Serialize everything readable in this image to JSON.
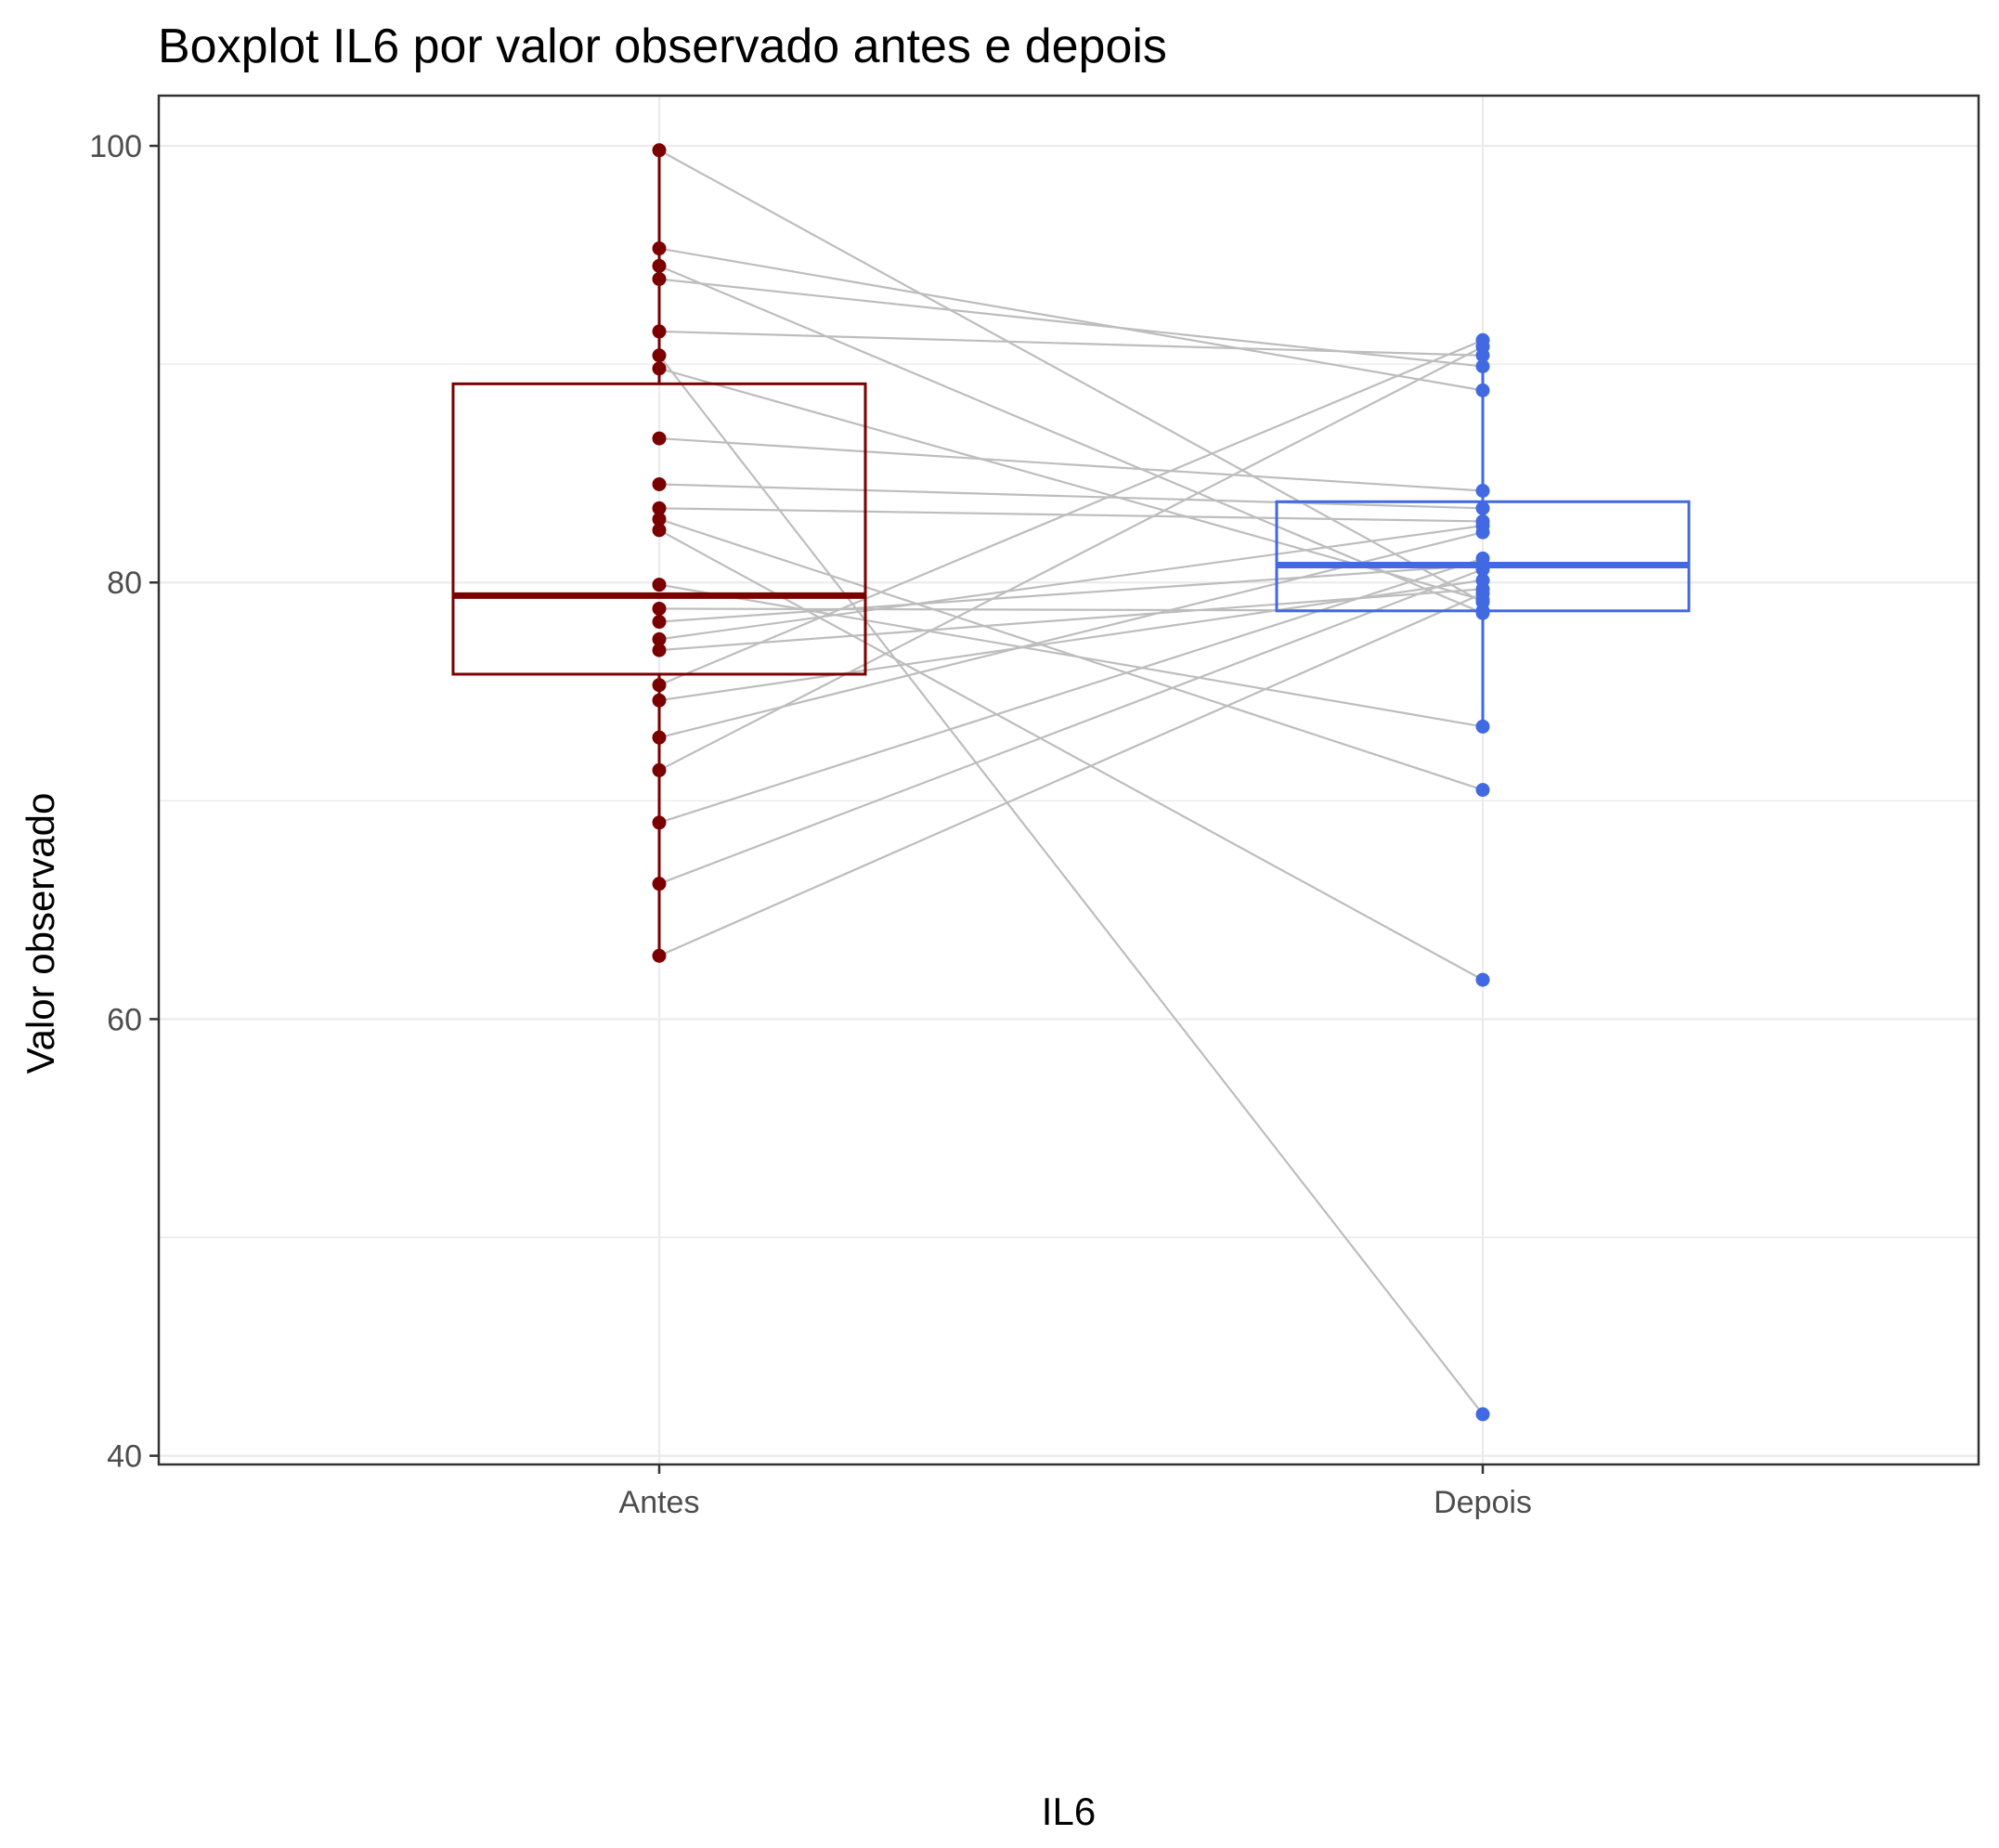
{
  "chart_data": {
    "type": "boxplot",
    "title": "Boxplot IL6 por valor observado antes e depois",
    "xlabel": "IL6",
    "ylabel": "Valor observado",
    "categories": [
      "Antes",
      "Depois"
    ],
    "ylim": [
      39.6,
      102.3
    ],
    "yticks": [
      40,
      60,
      80,
      100
    ],
    "grid": true,
    "legend": "none",
    "colors": {
      "Antes": "#7b0000",
      "Depois": "#4169e1",
      "pair_line": "#bdbdbd",
      "grid": "#ebebeb"
    },
    "boxes": [
      {
        "category": "Antes",
        "q1": 75.8,
        "median": 79.4,
        "q3": 89.1,
        "whisker_low": 62.9,
        "whisker_high": 99.8
      },
      {
        "category": "Depois",
        "q1": 78.7,
        "median": 80.8,
        "q3": 83.7,
        "whisker_low": 73.4,
        "whisker_high": 89.6
      }
    ],
    "series": [
      {
        "name": "Antes",
        "values": [
          99.8,
          94.5,
          93.9,
          95.3,
          91.5,
          90.4,
          89.8,
          86.6,
          84.5,
          83.4,
          82.9,
          82.4,
          79.9,
          78.8,
          78.2,
          77.4,
          76.9,
          75.3,
          74.6,
          72.9,
          71.4,
          69.0,
          66.2,
          62.9
        ]
      },
      {
        "name": "Depois",
        "values": [
          79.1,
          78.6,
          89.9,
          88.8,
          90.4,
          41.9,
          79.2,
          84.2,
          83.4,
          82.8,
          70.5,
          61.8,
          73.4,
          78.7,
          80.8,
          82.6,
          79.7,
          91.1,
          80.1,
          82.3,
          90.8,
          81.1,
          80.6,
          79.5
        ]
      }
    ]
  }
}
